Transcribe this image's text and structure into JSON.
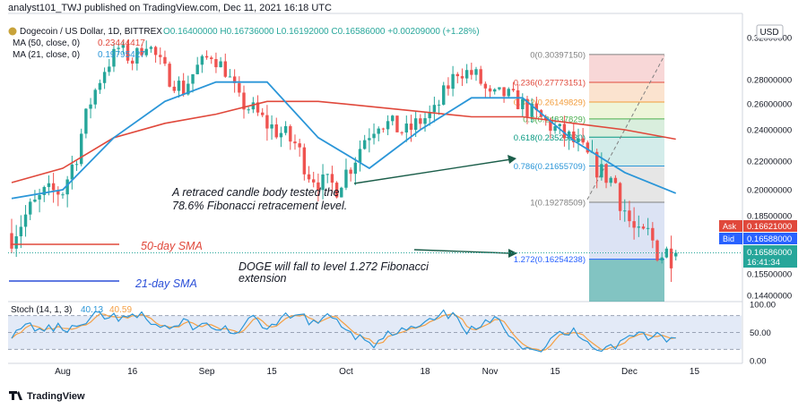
{
  "header": {
    "publisher": "analyst101_TWJ published on TradingView.com, Dec 11, 2021 16:18 UTC",
    "symbol": "Dogecoin / US Dollar, 1D, BITTREX",
    "ohlc": "O0.16400000  H0.16736000  L0.16192000  C0.16586000  +0.00209000 (+1.28%)",
    "ma50_label": "MA (50, close, 0)",
    "ma50_value": "0.23444417",
    "ma21_label": "MA (21, close, 0)",
    "ma21_value": "0.19795427"
  },
  "currency": "USD",
  "footer": {
    "brand": "TradingView"
  },
  "colors": {
    "up": "#26a69a",
    "down": "#ef5350",
    "ma50": "#e0483b",
    "ma21": "#2b96d8",
    "stoch_k": "#2b96d8",
    "stoch_d": "#f5a045"
  },
  "chart_data": [
    {
      "type": "candlestick",
      "title": "Dogecoin / US Dollar, 1D",
      "ylim": [
        0.14,
        0.32
      ],
      "y_ticks": [
        "0.32000000",
        "0.28000000",
        "0.26000000",
        "0.24000000",
        "0.22000000",
        "0.20000000",
        "0.18500000",
        "0.15500000",
        "0.14400000"
      ],
      "x_ticks": [
        "Aug",
        "16",
        "Sep",
        "15",
        "Oct",
        "18",
        "Nov",
        "15",
        "Dec",
        "15"
      ],
      "start_date": "2021-07-21",
      "end_date": "2021-12-11",
      "ohlc": [],
      "ma50": [
        0.205,
        0.215,
        0.235,
        0.245,
        0.252,
        0.262,
        0.262,
        0.258,
        0.254,
        0.25,
        0.25,
        0.245,
        0.24,
        0.234
      ],
      "ma21": [
        0.195,
        0.2,
        0.235,
        0.262,
        0.278,
        0.278,
        0.235,
        0.215,
        0.24,
        0.265,
        0.265,
        0.233,
        0.212,
        0.198
      ],
      "fibonacci": [
        {
          "ratio": "0",
          "label": "0(0.30397150)",
          "value": 0.3039715
        },
        {
          "ratio": "0.236",
          "label": "0.236(0.27773151)",
          "value": 0.27773151
        },
        {
          "ratio": "0.382",
          "label": "0.382(0.26149829)",
          "value": 0.26149829
        },
        {
          "ratio": "0.5",
          "label": "0.5(0.24837829)",
          "value": 0.24837829
        },
        {
          "ratio": "0.618",
          "label": "0.618(0.23525830)",
          "value": 0.2352583
        },
        {
          "ratio": "0.786",
          "label": "0.786(0.21655709)",
          "value": 0.21655709
        },
        {
          "ratio": "1",
          "label": "1(0.19278509)",
          "value": 0.19278509
        },
        {
          "ratio": "1.272",
          "label": "1.272(0.16254238)",
          "value": 0.16254238
        }
      ],
      "price_tags": {
        "ask_label": "Ask",
        "ask": "0.16621000",
        "bid_label": "Bid",
        "bid": "0.16588000",
        "last": "0.16586000",
        "countdown": "16:41:34"
      },
      "annotations": {
        "retraced": "A retraced candle body tested the 78.6% Fibonacci retracement level.",
        "doge": "DOGE will fall to level 1.272 Fibonacci extension",
        "sma50": "50-day SMA",
        "sma21": "21-day SMA"
      }
    },
    {
      "type": "line",
      "title": "Stoch (14, 1, 3)",
      "k_value": "40.13",
      "d_value": "40.59",
      "ylim": [
        0,
        100
      ],
      "y_ticks": [
        "100.00",
        "50.00",
        "0.00"
      ],
      "band": [
        20,
        80
      ]
    }
  ]
}
